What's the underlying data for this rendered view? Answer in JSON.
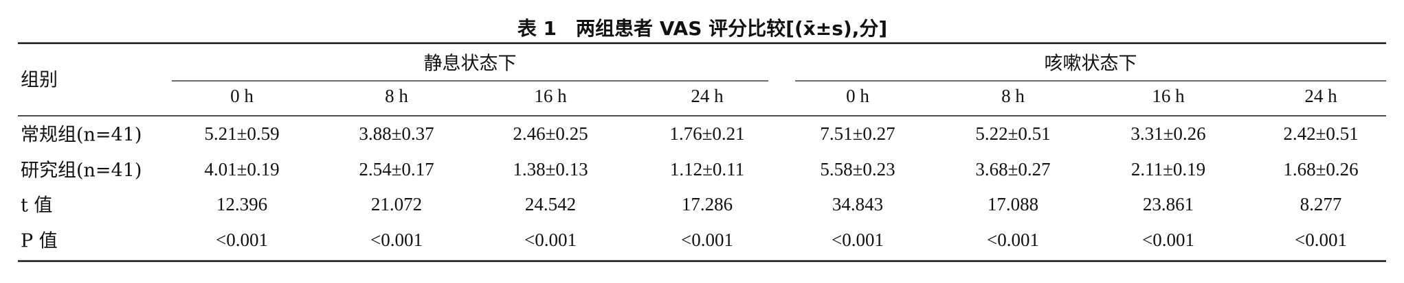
{
  "title": "表 1　两组患者 VAS 评分比较[(x̄±s),分]",
  "table": {
    "stub_header": "组别",
    "groups": [
      "静息状态下",
      "咳嗽状态下"
    ],
    "columns": [
      "0 h",
      "8 h",
      "16 h",
      "24 h",
      "0 h",
      "8 h",
      "16 h",
      "24 h"
    ],
    "rows": [
      {
        "label": "常规组(n=41)",
        "cells": [
          "5.21±0.59",
          "3.88±0.37",
          "2.46±0.25",
          "1.76±0.21",
          "7.51±0.27",
          "5.22±0.51",
          "3.31±0.26",
          "2.42±0.51"
        ]
      },
      {
        "label": "研究组(n=41)",
        "cells": [
          "4.01±0.19",
          "2.54±0.17",
          "1.38±0.13",
          "1.12±0.11",
          "5.58±0.23",
          "3.68±0.27",
          "2.11±0.19",
          "1.68±0.26"
        ]
      },
      {
        "label": "t 值",
        "cells": [
          "12.396",
          "21.072",
          "24.542",
          "17.286",
          "34.843",
          "17.088",
          "23.861",
          "8.277"
        ]
      },
      {
        "label": "P 值",
        "cells": [
          "<0.001",
          "<0.001",
          "<0.001",
          "<0.001",
          "<0.001",
          "<0.001",
          "<0.001",
          "<0.001"
        ]
      }
    ]
  }
}
